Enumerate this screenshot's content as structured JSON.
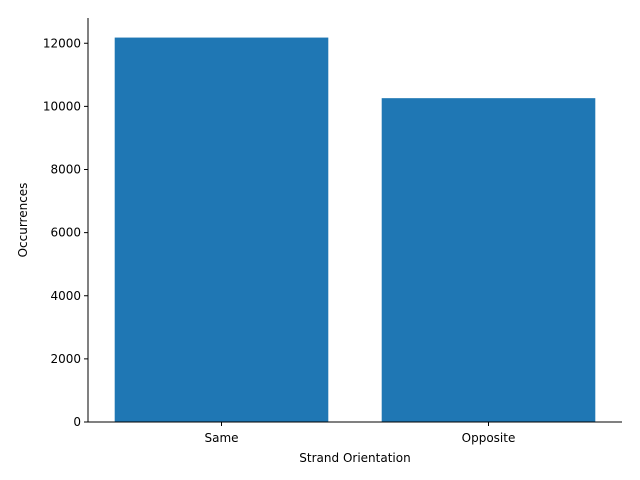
{
  "chart_data": {
    "type": "bar",
    "title": "",
    "categories": [
      "Same",
      "Opposite"
    ],
    "values": [
      12180,
      10260
    ],
    "xlabel": "Strand Orientation",
    "ylabel": "Occurrences",
    "ylim": [
      0,
      12800
    ],
    "yticks": [
      0,
      2000,
      4000,
      6000,
      8000,
      10000,
      12000
    ],
    "ytick_labels": [
      "0",
      "2000",
      "4000",
      "6000",
      "8000",
      "10000",
      "12000"
    ],
    "grid": false,
    "spines": "left-bottom",
    "colors": {
      "bar": "#1f77b4",
      "axis": "#000000",
      "background": "#ffffff"
    }
  }
}
